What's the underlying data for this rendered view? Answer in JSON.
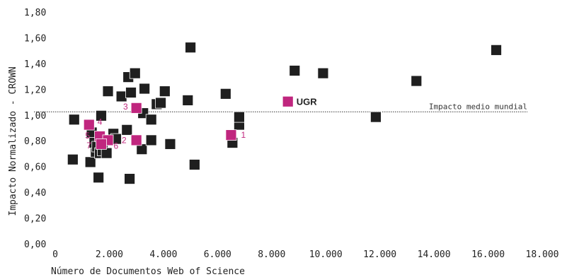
{
  "chart_data": {
    "type": "scatter",
    "title": "",
    "xlabel": "Número de Documentos Web of Science",
    "ylabel": "Impacto Normalizado - CROWN",
    "xlim": [
      0,
      18000
    ],
    "ylim": [
      0,
      1.8
    ],
    "x_ticks": [
      0,
      2000,
      4000,
      6000,
      8000,
      10000,
      12000,
      14000,
      16000,
      18000
    ],
    "x_tick_labels": [
      "0",
      "2.000",
      "4.000",
      "6.000",
      "8.000",
      "10.000",
      "12.000",
      "14.000",
      "16.000",
      "18.000"
    ],
    "y_ticks": [
      0,
      0.2,
      0.4,
      0.6,
      0.8,
      1.0,
      1.2,
      1.4,
      1.6,
      1.8
    ],
    "y_tick_labels": [
      "0,00",
      "0,20",
      "0,40",
      "0,60",
      "0,80",
      "1,00",
      "1,20",
      "1,40",
      "1,60",
      "1,80"
    ],
    "reference_line": {
      "y": 1.03,
      "label": "Impacto medio mundial"
    },
    "colors": {
      "others": "#1f1f1f",
      "highlight": "#c0267e"
    },
    "series": [
      {
        "role": "others",
        "points": [
          [
            700,
            0.97
          ],
          [
            650,
            0.66
          ],
          [
            1300,
            0.64
          ],
          [
            1500,
            0.72
          ],
          [
            1600,
            0.52
          ],
          [
            1700,
            1.0
          ],
          [
            1350,
            0.87
          ],
          [
            1450,
            0.79
          ],
          [
            1550,
            0.76
          ],
          [
            1650,
            0.71
          ],
          [
            1750,
            0.73
          ],
          [
            1900,
            0.71
          ],
          [
            2150,
            0.86
          ],
          [
            1950,
            1.19
          ],
          [
            2250,
            0.82
          ],
          [
            2450,
            1.15
          ],
          [
            2650,
            0.89
          ],
          [
            2700,
            1.3
          ],
          [
            2800,
            1.18
          ],
          [
            2950,
            1.33
          ],
          [
            2750,
            0.51
          ],
          [
            3200,
            0.74
          ],
          [
            3250,
            1.02
          ],
          [
            3300,
            1.21
          ],
          [
            3550,
            0.81
          ],
          [
            3550,
            0.97
          ],
          [
            3750,
            1.09
          ],
          [
            3900,
            1.1
          ],
          [
            4050,
            1.19
          ],
          [
            4250,
            0.78
          ],
          [
            4900,
            1.12
          ],
          [
            5000,
            1.53
          ],
          [
            5150,
            0.62
          ],
          [
            6300,
            1.17
          ],
          [
            6550,
            0.79
          ],
          [
            6800,
            0.93
          ],
          [
            6800,
            0.99
          ],
          [
            8850,
            1.35
          ],
          [
            9900,
            1.33
          ],
          [
            11850,
            0.99
          ],
          [
            13350,
            1.27
          ],
          [
            16300,
            1.51
          ]
        ]
      },
      {
        "role": "highlight",
        "points": [
          {
            "x": 8600,
            "y": 1.11,
            "label": "UGR"
          },
          {
            "x": 6500,
            "y": 0.85,
            "label": "1"
          },
          {
            "x": 3000,
            "y": 0.81,
            "label": "2"
          },
          {
            "x": 3000,
            "y": 1.06,
            "label": "3"
          },
          {
            "x": 1250,
            "y": 0.93,
            "label": "4"
          },
          {
            "x": 1650,
            "y": 0.84,
            "label": "5"
          },
          {
            "x": 1950,
            "y": 0.81,
            "label": "6"
          },
          {
            "x": 1700,
            "y": 0.78,
            "label": "7"
          }
        ]
      }
    ]
  }
}
